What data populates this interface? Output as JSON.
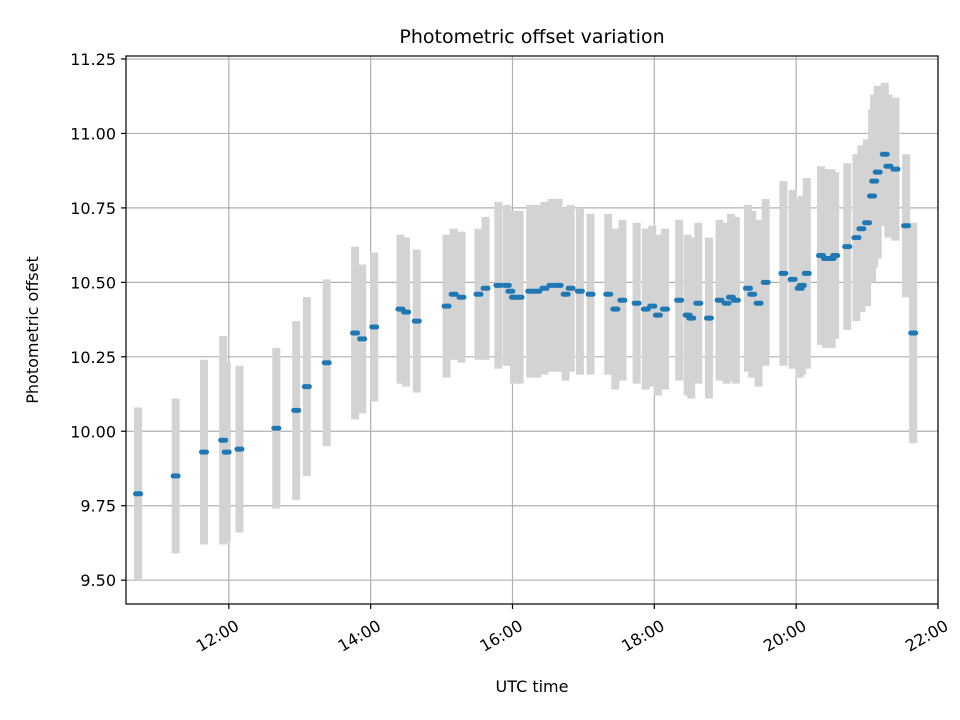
{
  "chart_data": {
    "type": "scatter",
    "title": "Photometric offset variation",
    "xlabel": "UTC time",
    "ylabel": "Photometric offset",
    "x_unit": "hours UTC",
    "xlim": [
      10.55,
      22.0
    ],
    "ylim": [
      9.42,
      11.26
    ],
    "x_tick_values": [
      12,
      14,
      16,
      18,
      20,
      22
    ],
    "x_tick_labels": [
      "12:00",
      "14:00",
      "16:00",
      "18:00",
      "20:00",
      "22:00"
    ],
    "y_tick_values": [
      9.5,
      9.75,
      10.0,
      10.25,
      10.5,
      10.75,
      11.0,
      11.25
    ],
    "y_tick_labels": [
      "9.50",
      "9.75",
      "10.00",
      "10.25",
      "10.50",
      "10.75",
      "11.00",
      "11.25"
    ],
    "grid": true,
    "colors": {
      "points": "#1f77b4",
      "error_bars": "#d3d3d3",
      "grid": "#b0b0b0"
    },
    "series": [
      {
        "x": [
          10.72,
          11.25,
          11.65,
          11.92,
          11.97,
          12.15,
          12.67,
          12.95,
          13.1,
          13.38,
          13.78,
          13.88,
          14.05,
          14.42,
          14.5,
          14.65,
          15.07,
          15.17,
          15.28,
          15.52,
          15.62,
          15.8,
          15.92,
          15.97,
          16.02,
          16.1,
          16.25,
          16.35,
          16.45,
          16.55,
          16.65,
          16.75,
          16.82,
          16.95,
          17.1,
          17.35,
          17.45,
          17.55,
          17.75,
          17.88,
          17.97,
          18.05,
          18.15,
          18.35,
          18.47,
          18.52,
          18.62,
          18.77,
          18.92,
          19.02,
          19.08,
          19.15,
          19.32,
          19.38,
          19.47,
          19.57,
          19.82,
          19.95,
          20.05,
          20.08,
          20.15,
          20.35,
          20.42,
          20.5,
          20.55,
          20.72,
          20.85,
          20.92,
          21.0,
          21.07,
          21.1,
          21.15,
          21.25,
          21.3,
          21.4,
          21.55,
          21.65
        ],
        "y": [
          9.79,
          9.85,
          9.93,
          9.97,
          9.93,
          9.94,
          10.01,
          10.07,
          10.15,
          10.23,
          10.33,
          10.31,
          10.35,
          10.41,
          10.4,
          10.37,
          10.42,
          10.46,
          10.45,
          10.46,
          10.48,
          10.49,
          10.49,
          10.47,
          10.45,
          10.45,
          10.47,
          10.47,
          10.48,
          10.49,
          10.49,
          10.46,
          10.48,
          10.47,
          10.46,
          10.46,
          10.41,
          10.44,
          10.43,
          10.41,
          10.42,
          10.39,
          10.41,
          10.44,
          10.39,
          10.38,
          10.43,
          10.38,
          10.44,
          10.43,
          10.45,
          10.44,
          10.48,
          10.46,
          10.43,
          10.5,
          10.53,
          10.51,
          10.48,
          10.49,
          10.53,
          10.59,
          10.58,
          10.58,
          10.59,
          10.62,
          10.65,
          10.68,
          10.7,
          10.79,
          10.84,
          10.87,
          10.93,
          10.89,
          10.88,
          10.69,
          10.33
        ],
        "err": [
          0.29,
          0.26,
          0.31,
          0.35,
          0.3,
          0.28,
          0.27,
          0.3,
          0.3,
          0.28,
          0.29,
          0.25,
          0.25,
          0.25,
          0.25,
          0.24,
          0.24,
          0.22,
          0.22,
          0.22,
          0.24,
          0.28,
          0.27,
          0.25,
          0.29,
          0.29,
          0.29,
          0.29,
          0.29,
          0.29,
          0.29,
          0.29,
          0.28,
          0.28,
          0.27,
          0.27,
          0.27,
          0.27,
          0.27,
          0.27,
          0.27,
          0.27,
          0.27,
          0.27,
          0.27,
          0.27,
          0.27,
          0.27,
          0.27,
          0.27,
          0.28,
          0.28,
          0.28,
          0.28,
          0.28,
          0.28,
          0.31,
          0.3,
          0.3,
          0.3,
          0.32,
          0.3,
          0.3,
          0.3,
          0.28,
          0.28,
          0.28,
          0.28,
          0.28,
          0.29,
          0.29,
          0.29,
          0.24,
          0.24,
          0.24,
          0.24,
          0.37
        ]
      }
    ]
  }
}
